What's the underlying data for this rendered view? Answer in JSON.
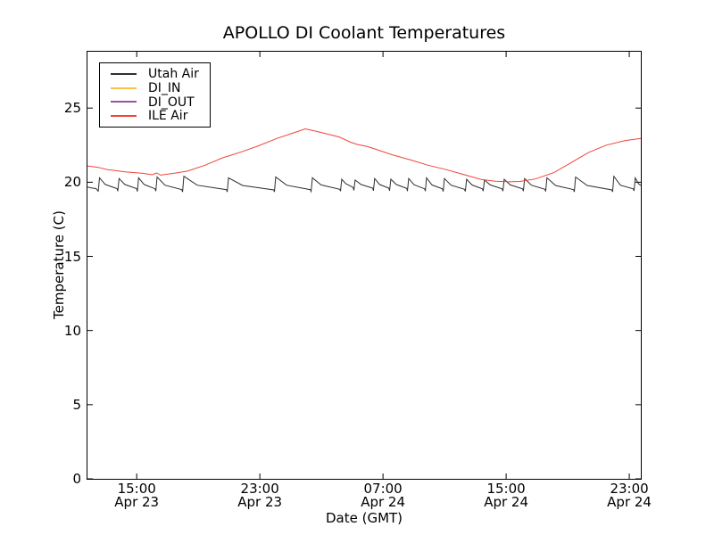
{
  "chart_data": {
    "type": "line",
    "title": "APOLLO DI Coolant Temperatures",
    "xlabel": "Date (GMT)",
    "ylabel": "Temperature (C)",
    "x_axis_unit": "hours since Apr 23 00:00 GMT",
    "xlim": [
      11.8,
      47.75
    ],
    "ylim": [
      0,
      28.8
    ],
    "grid": false,
    "legend_position": "upper-left",
    "axis_color": "#000000",
    "y_ticks": [
      0,
      5,
      10,
      15,
      20,
      25
    ],
    "x_ticks": [
      {
        "value": 15,
        "time": "15:00",
        "date": "Apr 23"
      },
      {
        "value": 23,
        "time": "23:00",
        "date": "Apr 23"
      },
      {
        "value": 31,
        "time": "07:00",
        "date": "Apr 24"
      },
      {
        "value": 39,
        "time": "15:00",
        "date": "Apr 24"
      },
      {
        "value": 47,
        "time": "23:00",
        "date": "Apr 24"
      }
    ],
    "series": [
      {
        "name": "Utah Air",
        "color": "#2f2f2f",
        "points": [
          [
            11.8,
            19.68
          ],
          [
            12.05,
            19.62
          ],
          [
            12.35,
            19.57
          ],
          [
            12.5,
            19.4
          ],
          [
            12.58,
            20.3
          ],
          [
            12.96,
            19.85
          ],
          [
            13.72,
            19.57
          ],
          [
            13.77,
            19.4
          ],
          [
            13.85,
            20.25
          ],
          [
            14.23,
            19.85
          ],
          [
            14.99,
            19.57
          ],
          [
            15.04,
            19.38
          ],
          [
            15.12,
            20.3
          ],
          [
            15.48,
            19.85
          ],
          [
            16.19,
            19.56
          ],
          [
            16.24,
            19.4
          ],
          [
            16.32,
            20.35
          ],
          [
            16.84,
            19.8
          ],
          [
            17.93,
            19.5
          ],
          [
            17.98,
            19.35
          ],
          [
            18.06,
            20.4
          ],
          [
            18.93,
            19.8
          ],
          [
            20.83,
            19.5
          ],
          [
            20.88,
            19.35
          ],
          [
            20.96,
            20.3
          ],
          [
            21.88,
            19.78
          ],
          [
            23.9,
            19.48
          ],
          [
            23.95,
            19.35
          ],
          [
            24.03,
            20.35
          ],
          [
            24.74,
            19.8
          ],
          [
            26.28,
            19.5
          ],
          [
            26.33,
            19.38
          ],
          [
            26.41,
            20.3
          ],
          [
            26.98,
            19.82
          ],
          [
            28.19,
            19.52
          ],
          [
            28.24,
            19.4
          ],
          [
            28.32,
            20.2
          ],
          [
            28.58,
            19.9
          ],
          [
            29.06,
            19.65
          ],
          [
            29.11,
            19.45
          ],
          [
            29.19,
            20.15
          ],
          [
            29.57,
            19.85
          ],
          [
            30.33,
            19.6
          ],
          [
            30.38,
            19.42
          ],
          [
            30.46,
            20.25
          ],
          [
            30.78,
            19.85
          ],
          [
            31.38,
            19.6
          ],
          [
            31.43,
            19.42
          ],
          [
            31.51,
            20.2
          ],
          [
            31.86,
            19.85
          ],
          [
            32.54,
            19.58
          ],
          [
            32.59,
            19.4
          ],
          [
            32.67,
            20.25
          ],
          [
            33.02,
            19.83
          ],
          [
            33.7,
            19.56
          ],
          [
            33.75,
            19.4
          ],
          [
            33.83,
            20.3
          ],
          [
            34.18,
            19.82
          ],
          [
            34.86,
            19.55
          ],
          [
            34.91,
            19.38
          ],
          [
            34.99,
            20.25
          ],
          [
            35.42,
            19.8
          ],
          [
            36.3,
            19.52
          ],
          [
            36.35,
            19.38
          ],
          [
            36.43,
            20.2
          ],
          [
            36.78,
            19.82
          ],
          [
            37.46,
            19.55
          ],
          [
            37.51,
            19.4
          ],
          [
            37.59,
            20.15
          ],
          [
            37.97,
            19.82
          ],
          [
            38.74,
            19.55
          ],
          [
            38.79,
            19.4
          ],
          [
            38.87,
            20.2
          ],
          [
            39.27,
            19.82
          ],
          [
            40.07,
            19.55
          ],
          [
            40.12,
            19.4
          ],
          [
            40.2,
            20.25
          ],
          [
            40.64,
            19.8
          ],
          [
            41.52,
            19.52
          ],
          [
            41.57,
            19.38
          ],
          [
            41.65,
            20.3
          ],
          [
            42.21,
            19.78
          ],
          [
            43.38,
            19.5
          ],
          [
            43.43,
            19.35
          ],
          [
            43.51,
            20.35
          ],
          [
            44.26,
            19.78
          ],
          [
            45.87,
            19.48
          ],
          [
            45.92,
            19.35
          ],
          [
            46.0,
            20.4
          ],
          [
            46.42,
            19.8
          ],
          [
            47.26,
            19.55
          ],
          [
            47.31,
            19.42
          ],
          [
            47.39,
            20.3
          ],
          [
            47.6,
            19.9
          ],
          [
            47.75,
            19.78
          ]
        ]
      },
      {
        "name": "DI_IN",
        "color": "#fcbf49",
        "points": []
      },
      {
        "name": "DI_OUT",
        "color": "#9b51a5",
        "points": []
      },
      {
        "name": "ILE Air",
        "color": "#ef443a",
        "points": [
          [
            11.8,
            21.1
          ],
          [
            12.5,
            21.0
          ],
          [
            13.1,
            20.85
          ],
          [
            14.25,
            20.7
          ],
          [
            15.4,
            20.6
          ],
          [
            16.0,
            20.5
          ],
          [
            16.3,
            20.62
          ],
          [
            16.55,
            20.48
          ],
          [
            17.4,
            20.6
          ],
          [
            18.3,
            20.75
          ],
          [
            19.45,
            21.15
          ],
          [
            20.6,
            21.65
          ],
          [
            21.8,
            22.05
          ],
          [
            22.9,
            22.45
          ],
          [
            24.1,
            22.95
          ],
          [
            25.25,
            23.35
          ],
          [
            25.95,
            23.6
          ],
          [
            26.6,
            23.45
          ],
          [
            27.0,
            23.35
          ],
          [
            28.15,
            23.05
          ],
          [
            28.9,
            22.7
          ],
          [
            29.3,
            22.55
          ],
          [
            30.0,
            22.4
          ],
          [
            30.45,
            22.25
          ],
          [
            31.6,
            21.85
          ],
          [
            32.8,
            21.5
          ],
          [
            33.9,
            21.15
          ],
          [
            35.1,
            20.85
          ],
          [
            36.3,
            20.5
          ],
          [
            37.4,
            20.18
          ],
          [
            38.3,
            20.07
          ],
          [
            39.2,
            20.03
          ],
          [
            39.9,
            20.05
          ],
          [
            40.9,
            20.22
          ],
          [
            42.1,
            20.65
          ],
          [
            43.2,
            21.3
          ],
          [
            44.35,
            22.0
          ],
          [
            45.5,
            22.5
          ],
          [
            46.7,
            22.8
          ],
          [
            47.75,
            22.95
          ]
        ]
      }
    ]
  }
}
